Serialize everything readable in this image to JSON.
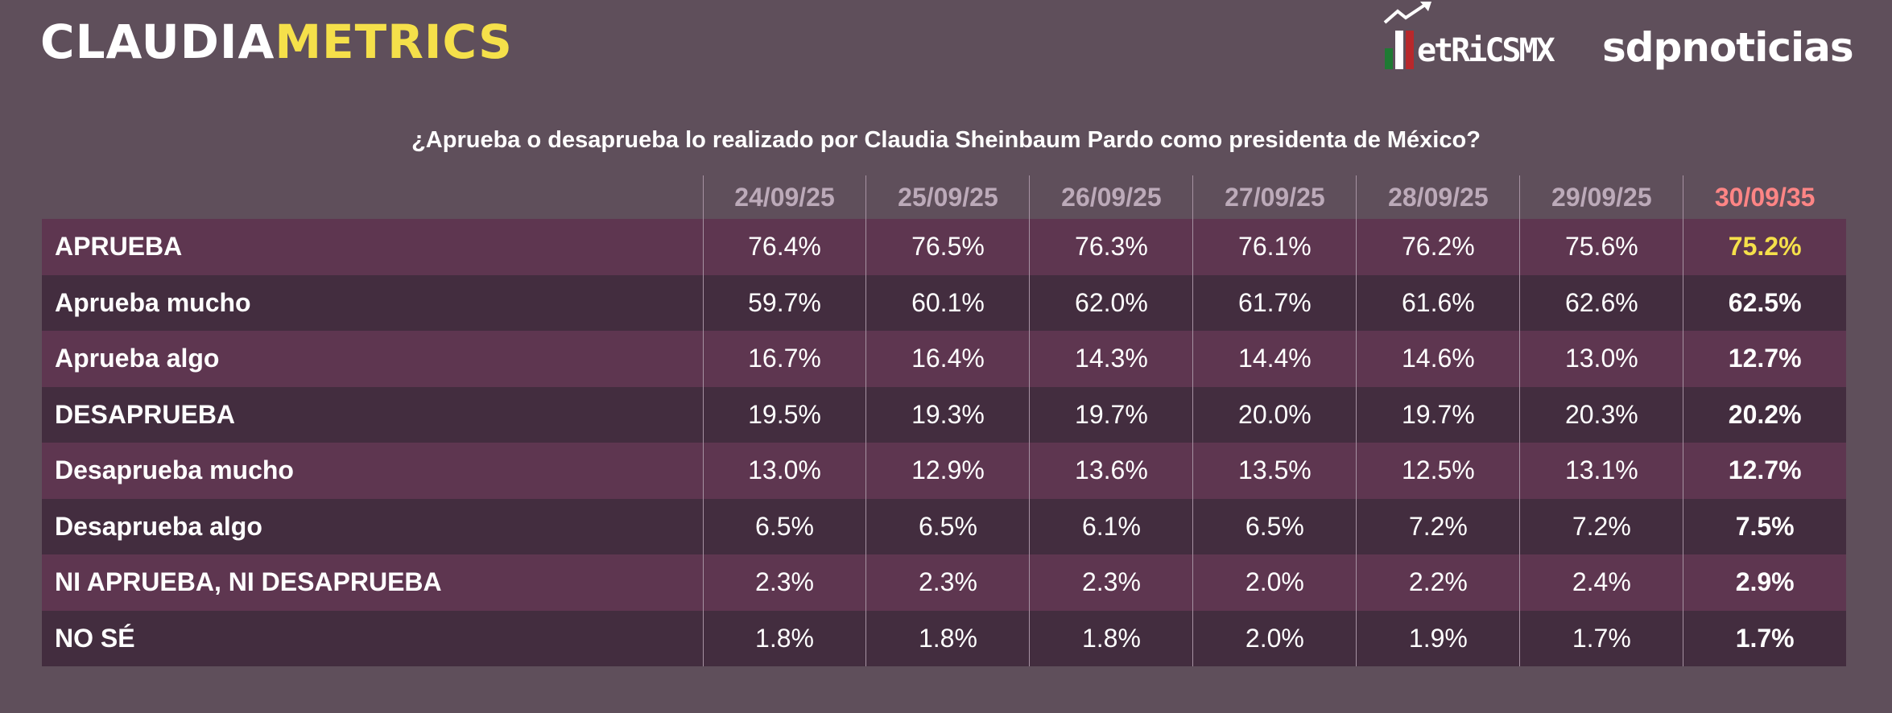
{
  "header": {
    "logo_part1": "CLAUDIA",
    "logo_part2": "METRICS",
    "partner1": "etRiCSMX",
    "partner2": "sdpnoticias"
  },
  "colors": {
    "background": "#5f4f5b",
    "row_odd": "#5e3650",
    "row_even": "#432d3f",
    "accent_yellow": "#f5e04a",
    "accent_red": "#ff8585"
  },
  "chart_data": {
    "type": "table",
    "title": "¿Aprueba o desaprueba lo realizado por Claudia Sheinbaum Pardo como presidenta de México?",
    "columns": [
      "24/09/25",
      "25/09/25",
      "26/09/25",
      "27/09/25",
      "28/09/25",
      "29/09/25",
      "30/09/35"
    ],
    "rows": [
      {
        "label": "APRUEBA",
        "values": [
          "76.4%",
          "76.5%",
          "76.3%",
          "76.1%",
          "76.2%",
          "75.6%",
          "75.2%"
        ]
      },
      {
        "label": "Aprueba mucho",
        "values": [
          "59.7%",
          "60.1%",
          "62.0%",
          "61.7%",
          "61.6%",
          "62.6%",
          "62.5%"
        ]
      },
      {
        "label": "Aprueba algo",
        "values": [
          "16.7%",
          "16.4%",
          "14.3%",
          "14.4%",
          "14.6%",
          "13.0%",
          "12.7%"
        ]
      },
      {
        "label": "DESAPRUEBA",
        "values": [
          "19.5%",
          "19.3%",
          "19.7%",
          "20.0%",
          "19.7%",
          "20.3%",
          "20.2%"
        ]
      },
      {
        "label": "Desaprueba mucho",
        "values": [
          "13.0%",
          "12.9%",
          "13.6%",
          "13.5%",
          "12.5%",
          "13.1%",
          "12.7%"
        ]
      },
      {
        "label": "Desaprueba algo",
        "values": [
          "6.5%",
          "6.5%",
          "6.1%",
          "6.5%",
          "7.2%",
          "7.2%",
          "7.5%"
        ]
      },
      {
        "label": "NI APRUEBA, NI DESAPRUEBA",
        "values": [
          "2.3%",
          "2.3%",
          "2.3%",
          "2.0%",
          "2.2%",
          "2.4%",
          "2.9%"
        ]
      },
      {
        "label": "NO SÉ",
        "values": [
          "1.8%",
          "1.8%",
          "1.8%",
          "2.0%",
          "1.9%",
          "1.7%",
          "1.7%"
        ]
      }
    ]
  }
}
